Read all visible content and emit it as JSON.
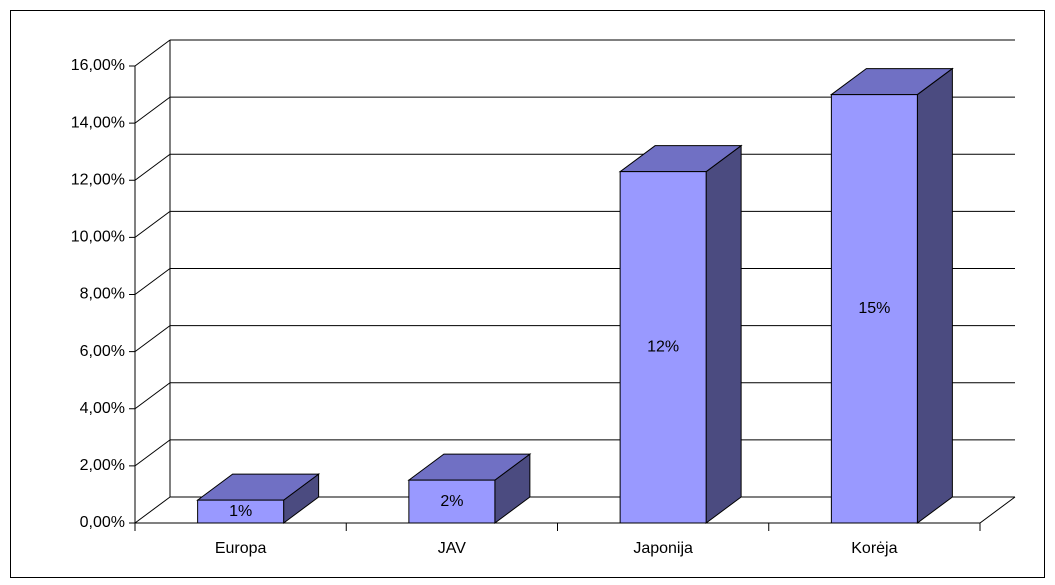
{
  "chart_data": {
    "type": "bar3d",
    "categories": [
      "Europa",
      "JAV",
      "Japonija",
      "Korėja"
    ],
    "values": [
      0.8,
      1.5,
      12.3,
      15.0
    ],
    "value_labels": [
      "1%",
      "2%",
      "12%",
      "15%"
    ],
    "color": "#9999ff",
    "ylim": [
      0,
      16
    ],
    "yticks": [
      {
        "value": 0,
        "label": "0,00%"
      },
      {
        "value": 2,
        "label": "2,00%"
      },
      {
        "value": 4,
        "label": "4,00%"
      },
      {
        "value": 6,
        "label": "6,00%"
      },
      {
        "value": 8,
        "label": "8,00%"
      },
      {
        "value": 10,
        "label": "10,00%"
      },
      {
        "value": 12,
        "label": "12,00%"
      },
      {
        "value": 14,
        "label": "14,00%"
      },
      {
        "value": 16,
        "label": "16,00%"
      }
    ],
    "grid": true
  }
}
